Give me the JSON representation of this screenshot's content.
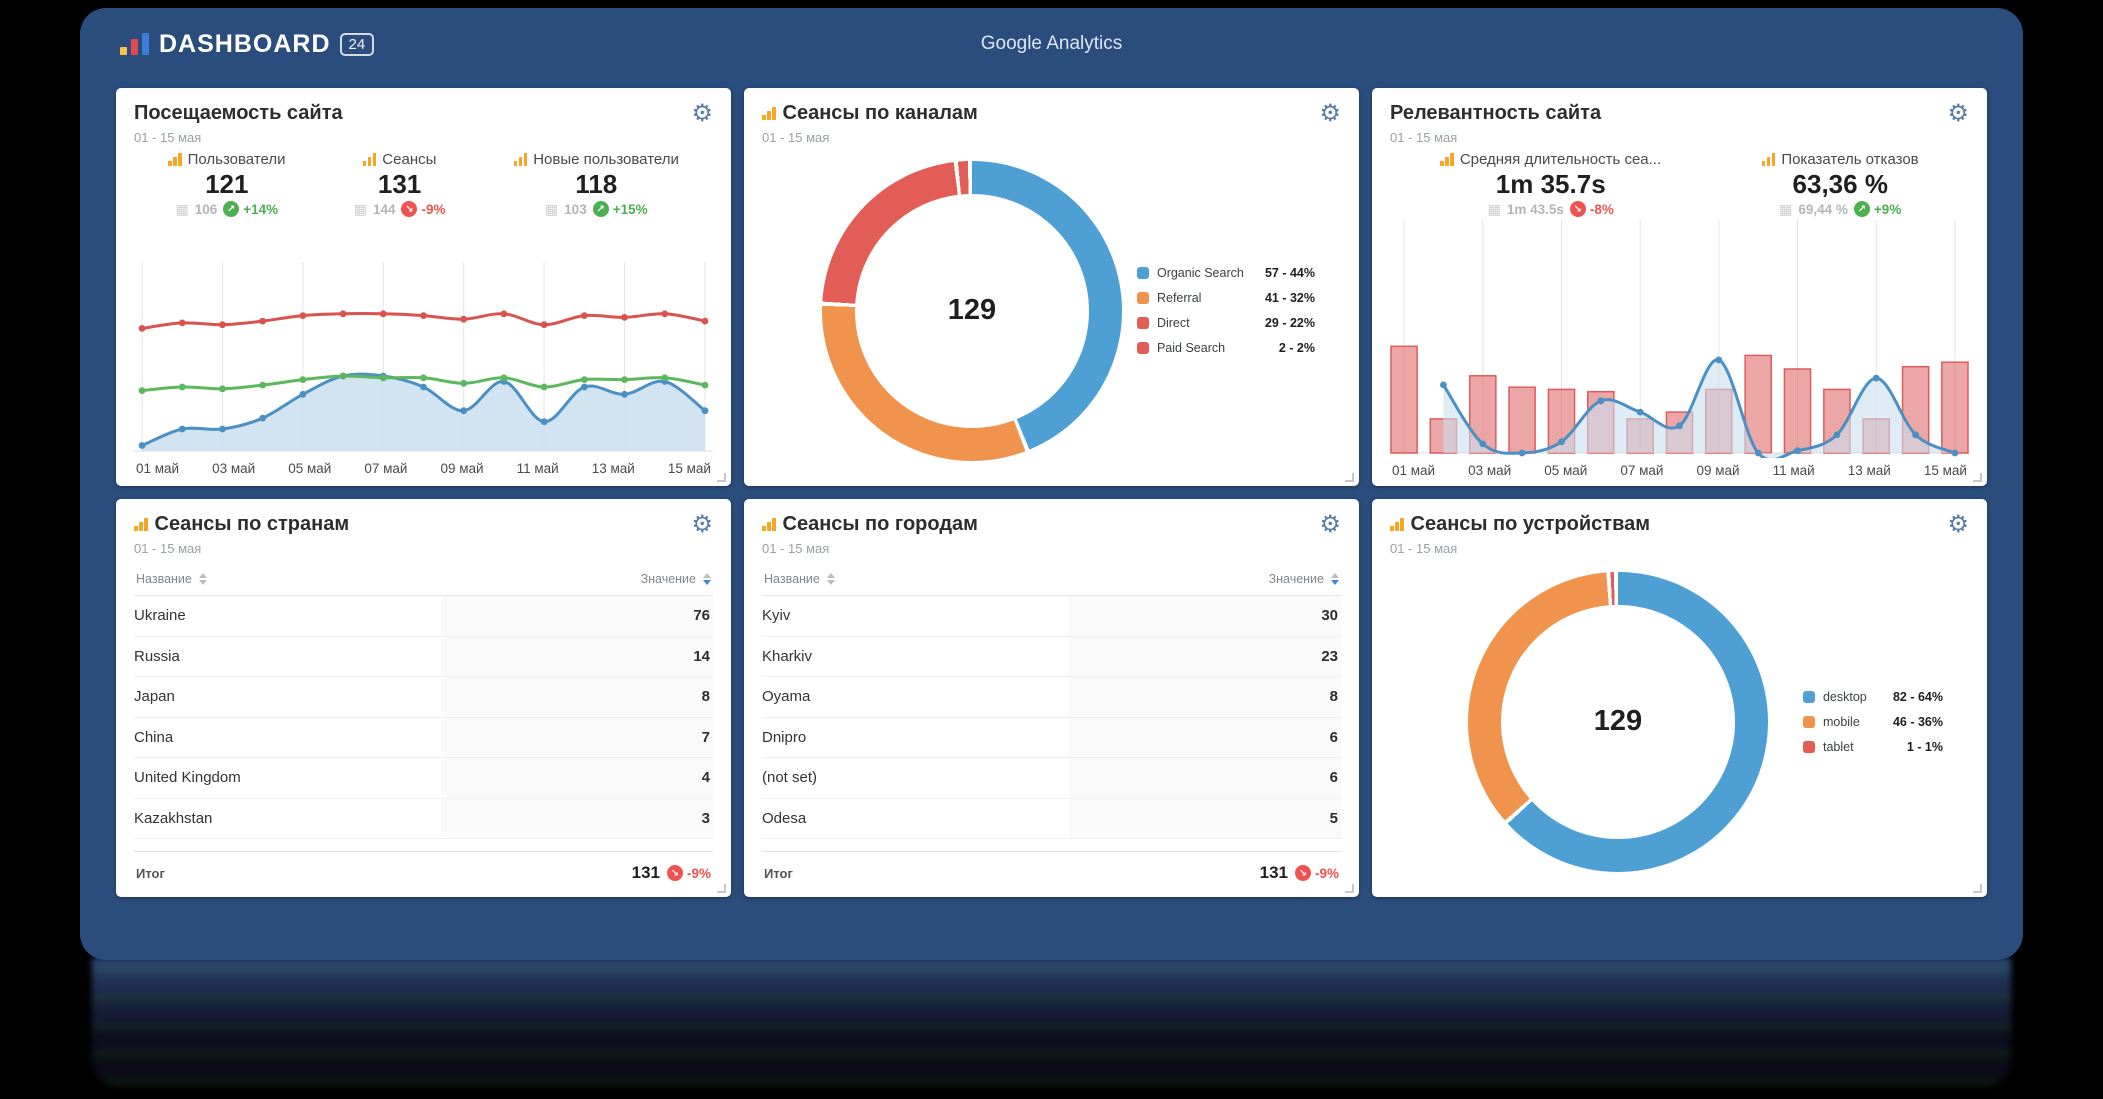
{
  "header": {
    "brand": "DASHBOARD",
    "badge": "24",
    "title": "Google Analytics"
  },
  "icons": {
    "settings": "⚙",
    "calendar": "▦",
    "arrow_up": "↗",
    "arrow_down": "↘"
  },
  "colors": {
    "app_bg": "#2b4d7e",
    "accent_orange": "#f6a623",
    "gear": "#5b7ea8",
    "up_green": "#4caf50",
    "down_red": "#ef5350",
    "chart_red": "#d9534f",
    "chart_green": "#5cb85c",
    "chart_blue": "#4a90c4",
    "area_blue": "#cadfef",
    "donut_blue": "#4e9fd4",
    "donut_orange": "#f0944d",
    "donut_red": "#e25d55"
  },
  "cards": {
    "visits": {
      "title": "Посещаемость сайта",
      "period": "01 - 15 мая",
      "metrics": [
        {
          "label": "Пользователи",
          "value": "121",
          "prev": "106",
          "delta": "+14%",
          "dir": "up"
        },
        {
          "label": "Сеансы",
          "value": "131",
          "prev": "144",
          "delta": "-9%",
          "dir": "down"
        },
        {
          "label": "Новые пользователи",
          "value": "118",
          "prev": "103",
          "delta": "+15%",
          "dir": "up"
        }
      ]
    },
    "channels": {
      "title": "Сеансы по каналам",
      "period": "01 - 15 мая",
      "center_value": "129",
      "legend": [
        {
          "label": "Organic Search",
          "value": "57 - 44%",
          "color": "#4e9fd4"
        },
        {
          "label": "Referral",
          "value": "41 - 32%",
          "color": "#f0944d"
        },
        {
          "label": "Direct",
          "value": "29 - 22%",
          "color": "#e25d55"
        },
        {
          "label": "Paid Search",
          "value": "2 - 2%",
          "color": "#e25d55"
        }
      ]
    },
    "relevance": {
      "title": "Релевантность сайта",
      "period": "01 - 15 мая",
      "metrics": [
        {
          "label": "Средняя длительность сеа...",
          "value": "1m 35.7s",
          "prev": "1m 43.5s",
          "delta": "-8%",
          "dir": "down"
        },
        {
          "label": "Показатель отказов",
          "value": "63,36 %",
          "prev": "69,44 %",
          "delta": "+9%",
          "dir": "up"
        }
      ]
    },
    "countries": {
      "title": "Сеансы по странам",
      "period": "01 - 15 мая",
      "columns": [
        "Название",
        "Значение"
      ],
      "rows": [
        [
          "Ukraine",
          "76"
        ],
        [
          "Russia",
          "14"
        ],
        [
          "Japan",
          "8"
        ],
        [
          "China",
          "7"
        ],
        [
          "United Kingdom",
          "4"
        ],
        [
          "Kazakhstan",
          "3"
        ]
      ],
      "total_label": "Итог",
      "total_value": "131",
      "total_delta": "-9%"
    },
    "cities": {
      "title": "Сеансы по городам",
      "period": "01 - 15 мая",
      "columns": [
        "Название",
        "Значение"
      ],
      "rows": [
        [
          "Kyiv",
          "30"
        ],
        [
          "Kharkiv",
          "23"
        ],
        [
          "Oyama",
          "8"
        ],
        [
          "Dnipro",
          "6"
        ],
        [
          "(not set)",
          "6"
        ],
        [
          "Odesa",
          "5"
        ]
      ],
      "total_label": "Итог",
      "total_value": "131",
      "total_delta": "-9%"
    },
    "devices": {
      "title": "Сеансы по устройствам",
      "period": "01 - 15 мая",
      "center_value": "129",
      "legend": [
        {
          "label": "desktop",
          "value": "82 - 64%",
          "color": "#4e9fd4"
        },
        {
          "label": "mobile",
          "value": "46 - 36%",
          "color": "#f0944d"
        },
        {
          "label": "tablet",
          "value": "1 - 1%",
          "color": "#e25d55"
        }
      ]
    }
  },
  "chart_data": [
    {
      "type": "line",
      "card": "visits",
      "title": "Посещаемость сайта",
      "points": 15,
      "x_ticks": [
        "01 май",
        "03 май",
        "05 май",
        "07 май",
        "09 май",
        "11 май",
        "13 май",
        "15 май"
      ],
      "note": "values are % of plot height, no y-axis shown; one point per day 01-15 May",
      "series": [
        {
          "name": "new-users-area-blue",
          "color": "#4a90c4",
          "area": true,
          "area_color": "#cadfef",
          "area_opacity": 0.85,
          "values": [
            3,
            12,
            12,
            18,
            31,
            41,
            41,
            35,
            22,
            38,
            16,
            35,
            31,
            38,
            22
          ]
        },
        {
          "name": "users-green",
          "color": "#5cb85c",
          "values": [
            33,
            35,
            34,
            36,
            39,
            41,
            40,
            40,
            37,
            40,
            35,
            39,
            39,
            40,
            36
          ]
        },
        {
          "name": "sessions-red",
          "color": "#d9534f",
          "values": [
            67,
            70,
            69,
            71,
            74,
            75,
            75,
            74,
            72,
            75,
            69,
            74,
            73,
            75,
            71
          ]
        }
      ]
    },
    {
      "type": "pie",
      "card": "channels",
      "title": "Сеансы по каналам",
      "center": "129",
      "slices": [
        {
          "label": "Organic Search",
          "value": 57,
          "pct": 44.2,
          "color": "#4e9fd4"
        },
        {
          "label": "Referral",
          "value": 41,
          "pct": 31.8,
          "color": "#f0944d"
        },
        {
          "label": "Direct",
          "value": 29,
          "pct": 22.5,
          "color": "#e25d55"
        },
        {
          "label": "Paid Search",
          "value": 2,
          "pct": 1.5,
          "color": "#e25d55"
        }
      ]
    },
    {
      "type": "bar",
      "card": "relevance",
      "title": "Релевантность сайта",
      "points": 15,
      "x_ticks": [
        "01 май",
        "03 май",
        "05 май",
        "07 май",
        "09 май",
        "11 май",
        "13 май",
        "15 май"
      ],
      "note": "values are % of plot height, no y-axis shown; one bar per day 01-15 May",
      "bars": {
        "name": "bounce-bars-red",
        "color": "#de5c5c",
        "values": [
          47,
          15,
          34,
          29,
          28,
          27,
          15,
          18,
          28,
          43,
          37,
          28,
          15,
          38,
          40
        ]
      },
      "series": [
        {
          "name": "duration-line-blue",
          "color": "#4a90c4",
          "area": true,
          "area_color": "#cadfef",
          "area_opacity": 0.6,
          "values": [
            null,
            30,
            4,
            0,
            5,
            23,
            18,
            12,
            41,
            0,
            1,
            8,
            33,
            8,
            0
          ]
        }
      ]
    },
    {
      "type": "pie",
      "card": "devices",
      "title": "Сеансы по устройствам",
      "center": "129",
      "slices": [
        {
          "label": "desktop",
          "value": 82,
          "pct": 63.6,
          "color": "#4e9fd4"
        },
        {
          "label": "mobile",
          "value": 46,
          "pct": 35.6,
          "color": "#f0944d"
        },
        {
          "label": "tablet",
          "value": 1,
          "pct": 0.8,
          "color": "#e25d55"
        }
      ]
    }
  ]
}
